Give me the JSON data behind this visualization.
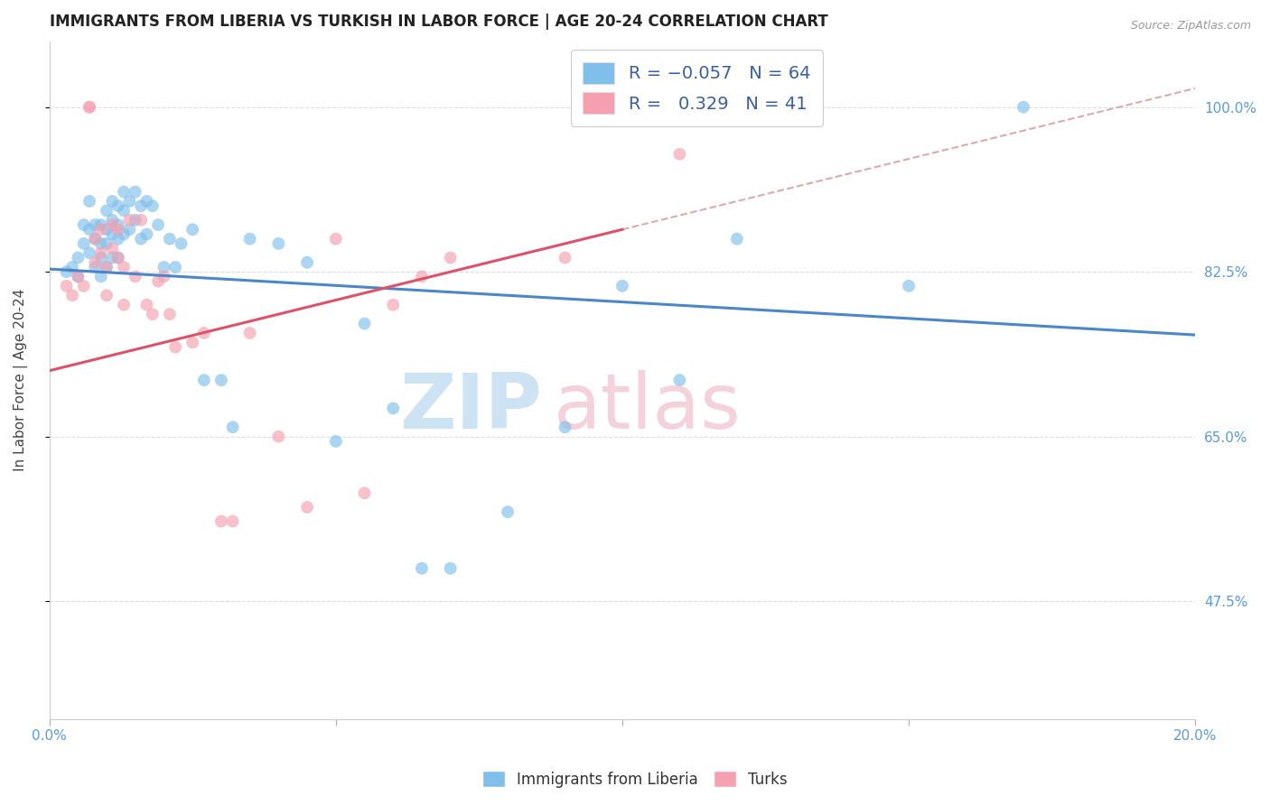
{
  "title": "IMMIGRANTS FROM LIBERIA VS TURKISH IN LABOR FORCE | AGE 20-24 CORRELATION CHART",
  "source": "Source: ZipAtlas.com",
  "ylabel": "In Labor Force | Age 20-24",
  "xlim": [
    0.0,
    0.2
  ],
  "ylim": [
    0.35,
    1.07
  ],
  "xticks": [
    0.0,
    0.05,
    0.1,
    0.15,
    0.2
  ],
  "xtick_labels": [
    "0.0%",
    "",
    "",
    "",
    "20.0%"
  ],
  "ytick_labels": [
    "47.5%",
    "65.0%",
    "82.5%",
    "100.0%"
  ],
  "yticks": [
    0.475,
    0.65,
    0.825,
    1.0
  ],
  "blue_color": "#7fbfea",
  "pink_color": "#f4a0b0",
  "blue_line_color": "#4a86c8",
  "pink_line_color": "#d9536a",
  "blue_scatter_x": [
    0.003,
    0.004,
    0.005,
    0.005,
    0.006,
    0.006,
    0.007,
    0.007,
    0.007,
    0.008,
    0.008,
    0.008,
    0.009,
    0.009,
    0.009,
    0.009,
    0.01,
    0.01,
    0.01,
    0.01,
    0.011,
    0.011,
    0.011,
    0.011,
    0.012,
    0.012,
    0.012,
    0.012,
    0.013,
    0.013,
    0.013,
    0.014,
    0.014,
    0.015,
    0.015,
    0.016,
    0.016,
    0.017,
    0.017,
    0.018,
    0.019,
    0.02,
    0.021,
    0.022,
    0.023,
    0.025,
    0.027,
    0.03,
    0.032,
    0.035,
    0.04,
    0.045,
    0.05,
    0.055,
    0.06,
    0.065,
    0.07,
    0.08,
    0.09,
    0.1,
    0.11,
    0.12,
    0.15,
    0.17
  ],
  "blue_scatter_y": [
    0.825,
    0.83,
    0.84,
    0.82,
    0.875,
    0.855,
    0.9,
    0.87,
    0.845,
    0.875,
    0.86,
    0.83,
    0.875,
    0.855,
    0.84,
    0.82,
    0.89,
    0.87,
    0.855,
    0.83,
    0.9,
    0.88,
    0.865,
    0.84,
    0.895,
    0.875,
    0.86,
    0.84,
    0.91,
    0.89,
    0.865,
    0.9,
    0.87,
    0.91,
    0.88,
    0.895,
    0.86,
    0.9,
    0.865,
    0.895,
    0.875,
    0.83,
    0.86,
    0.83,
    0.855,
    0.87,
    0.71,
    0.71,
    0.66,
    0.86,
    0.855,
    0.835,
    0.645,
    0.77,
    0.68,
    0.51,
    0.51,
    0.57,
    0.66,
    0.81,
    0.71,
    0.86,
    0.81,
    1.0
  ],
  "pink_scatter_x": [
    0.003,
    0.004,
    0.005,
    0.006,
    0.007,
    0.007,
    0.008,
    0.008,
    0.009,
    0.009,
    0.01,
    0.01,
    0.011,
    0.011,
    0.012,
    0.012,
    0.013,
    0.013,
    0.014,
    0.015,
    0.016,
    0.017,
    0.018,
    0.019,
    0.02,
    0.021,
    0.022,
    0.025,
    0.027,
    0.03,
    0.032,
    0.035,
    0.04,
    0.045,
    0.05,
    0.055,
    0.06,
    0.065,
    0.07,
    0.09,
    0.11
  ],
  "pink_scatter_y": [
    0.81,
    0.8,
    0.82,
    0.81,
    1.0,
    1.0,
    0.86,
    0.835,
    0.87,
    0.845,
    0.83,
    0.8,
    0.875,
    0.85,
    0.87,
    0.84,
    0.79,
    0.83,
    0.88,
    0.82,
    0.88,
    0.79,
    0.78,
    0.815,
    0.82,
    0.78,
    0.745,
    0.75,
    0.76,
    0.56,
    0.56,
    0.76,
    0.65,
    0.575,
    0.86,
    0.59,
    0.79,
    0.82,
    0.84,
    0.84,
    0.95
  ],
  "blue_trend_x": [
    0.0,
    0.2
  ],
  "blue_trend_y": [
    0.828,
    0.758
  ],
  "pink_trend_x": [
    0.0,
    0.1
  ],
  "pink_trend_y": [
    0.72,
    0.87
  ],
  "dashed_trend_x": [
    0.1,
    0.2
  ],
  "dashed_trend_y": [
    0.87,
    1.02
  ]
}
